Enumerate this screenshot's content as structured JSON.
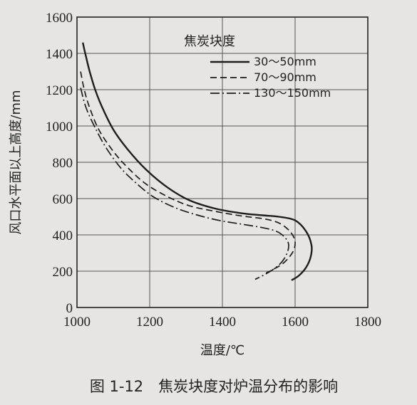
{
  "caption": "图 1-12　焦炭块度对炉温分布的影响",
  "chart_data": {
    "type": "line",
    "title": "",
    "xlabel": "温度/℃",
    "ylabel": "风口水平面以上高度/mm",
    "xlim": [
      1000,
      1800
    ],
    "ylim": [
      0,
      1600
    ],
    "xticks": [
      1000,
      1200,
      1400,
      1600,
      1800
    ],
    "yticks": [
      0,
      200,
      400,
      600,
      800,
      1000,
      1200,
      1400,
      1600
    ],
    "grid": true,
    "legend": {
      "title": "焦炭块度",
      "placement": "top-right"
    },
    "series": [
      {
        "name": "30～50mm",
        "style": "solid",
        "points": [
          [
            1016,
            1460
          ],
          [
            1025,
            1380
          ],
          [
            1035,
            1300
          ],
          [
            1050,
            1200
          ],
          [
            1070,
            1100
          ],
          [
            1100,
            980
          ],
          [
            1140,
            870
          ],
          [
            1190,
            760
          ],
          [
            1250,
            660
          ],
          [
            1310,
            590
          ],
          [
            1380,
            545
          ],
          [
            1450,
            520
          ],
          [
            1510,
            508
          ],
          [
            1555,
            500
          ],
          [
            1600,
            480
          ],
          [
            1630,
            420
          ],
          [
            1645,
            345
          ],
          [
            1643,
            280
          ],
          [
            1630,
            220
          ],
          [
            1610,
            175
          ],
          [
            1590,
            150
          ]
        ]
      },
      {
        "name": "70～90mm",
        "style": "dashed",
        "points": [
          [
            1010,
            1300
          ],
          [
            1020,
            1200
          ],
          [
            1035,
            1100
          ],
          [
            1060,
            980
          ],
          [
            1100,
            860
          ],
          [
            1140,
            770
          ],
          [
            1190,
            680
          ],
          [
            1250,
            610
          ],
          [
            1310,
            560
          ],
          [
            1380,
            530
          ],
          [
            1450,
            505
          ],
          [
            1510,
            490
          ],
          [
            1550,
            470
          ],
          [
            1575,
            440
          ],
          [
            1593,
            400
          ],
          [
            1600,
            360
          ],
          [
            1597,
            320
          ],
          [
            1585,
            280
          ],
          [
            1565,
            240
          ],
          [
            1540,
            210
          ],
          [
            1520,
            190
          ]
        ]
      },
      {
        "name": "130～150mm",
        "style": "dashdot",
        "points": [
          [
            1010,
            1210
          ],
          [
            1025,
            1100
          ],
          [
            1050,
            990
          ],
          [
            1080,
            880
          ],
          [
            1120,
            770
          ],
          [
            1160,
            690
          ],
          [
            1210,
            610
          ],
          [
            1270,
            550
          ],
          [
            1330,
            510
          ],
          [
            1390,
            480
          ],
          [
            1450,
            460
          ],
          [
            1510,
            440
          ],
          [
            1548,
            420
          ],
          [
            1570,
            390
          ],
          [
            1582,
            350
          ],
          [
            1578,
            300
          ],
          [
            1563,
            250
          ],
          [
            1540,
            210
          ],
          [
            1515,
            180
          ],
          [
            1490,
            155
          ]
        ]
      }
    ]
  }
}
